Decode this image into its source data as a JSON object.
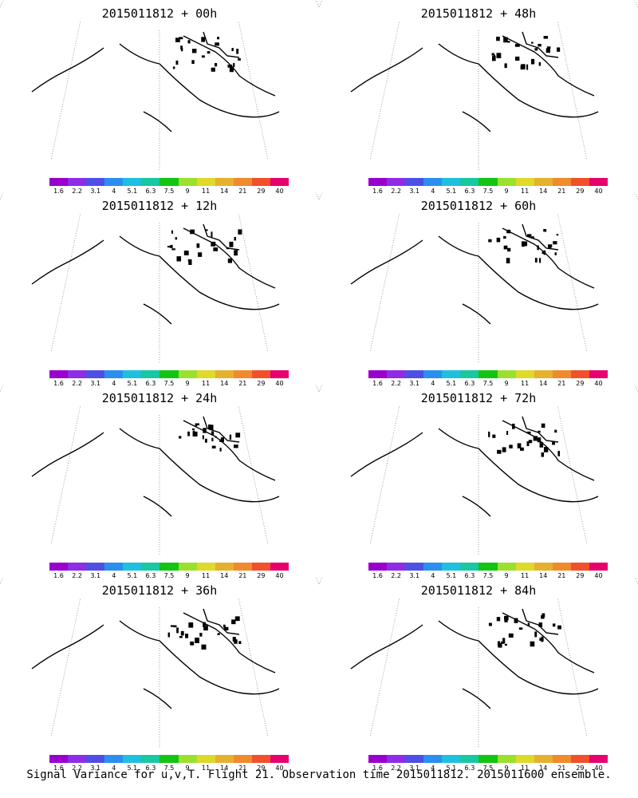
{
  "colorbar": {
    "colors": [
      "#9900cc",
      "#8e2ce6",
      "#4f4fe6",
      "#2a8ff0",
      "#1ec0e0",
      "#17c8a0",
      "#12c512",
      "#9be02c",
      "#dfd92a",
      "#e5b12e",
      "#f08a2c",
      "#f0502c",
      "#e8006e"
    ],
    "labels": [
      "1.6",
      "2.2",
      "3.1",
      "4",
      "5.1",
      "6.3",
      "7.5",
      "9",
      "11",
      "14",
      "21",
      "29",
      "40"
    ]
  },
  "panels": [
    {
      "title": "2015011812 + 00h",
      "intensity": 0
    },
    {
      "title": "2015011812 + 48h",
      "intensity": 4
    },
    {
      "title": "2015011812 + 12h",
      "intensity": 1
    },
    {
      "title": "2015011812 + 60h",
      "intensity": 5
    },
    {
      "title": "2015011812 + 24h",
      "intensity": 2
    },
    {
      "title": "2015011812 + 72h",
      "intensity": 6
    },
    {
      "title": "2015011812 + 36h",
      "intensity": 3
    },
    {
      "title": "2015011812 + 84h",
      "intensity": 7
    }
  ],
  "footer": "Signal Variance for u,v,T. Flight 21. Observation time 2015011812. 2015011600 ensemble."
}
